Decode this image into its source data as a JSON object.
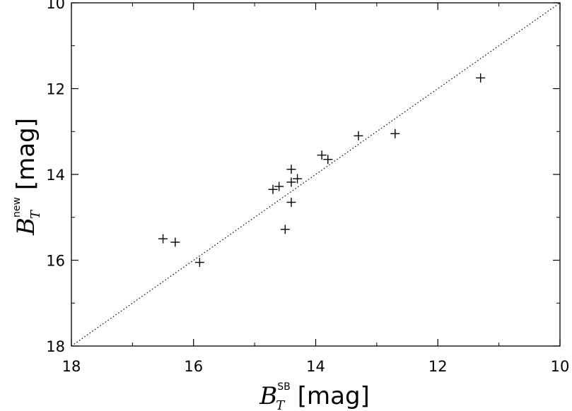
{
  "chart_data": {
    "type": "scatter",
    "x": [
      11.3,
      12.7,
      13.3,
      13.8,
      13.9,
      14.3,
      14.4,
      14.4,
      14.4,
      14.5,
      14.6,
      14.7,
      15.9,
      16.3,
      16.5
    ],
    "y": [
      11.75,
      13.05,
      13.1,
      13.65,
      13.55,
      14.1,
      13.88,
      14.18,
      14.65,
      15.28,
      14.28,
      14.35,
      16.05,
      15.58,
      15.5
    ],
    "marker": "plus",
    "reference_line": {
      "style": "dotted",
      "slope": 1,
      "intercept": 0
    },
    "xlim": [
      18,
      10
    ],
    "ylim": [
      18,
      10
    ],
    "xticks": [
      "18",
      "16",
      "14",
      "12",
      "10"
    ],
    "yticks": [
      "10",
      "12",
      "14",
      "16",
      "18"
    ],
    "xlabel": {
      "symbol": "B",
      "subscript": "T",
      "superscript": "SB",
      "unit": "[mag]"
    },
    "ylabel": {
      "symbol": "B",
      "subscript": "T",
      "superscript": "new",
      "unit": "[mag]"
    },
    "grid": false,
    "colors": {
      "ink": "#000000",
      "background": "#ffffff"
    }
  }
}
